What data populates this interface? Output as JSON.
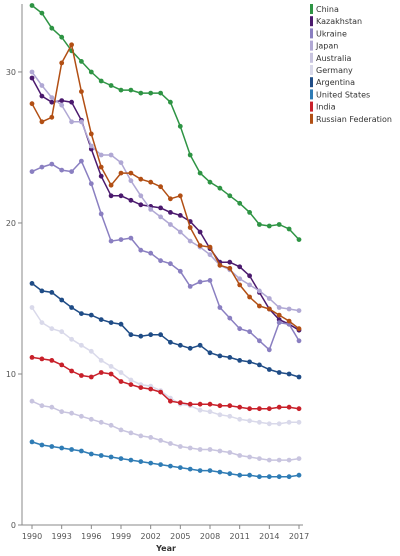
{
  "chart_data": {
    "type": "line",
    "xlabel": "Year",
    "ylabel": "",
    "x": [
      1990,
      1991,
      1992,
      1993,
      1994,
      1995,
      1996,
      1997,
      1998,
      1999,
      2000,
      2001,
      2002,
      2003,
      2004,
      2005,
      2006,
      2007,
      2008,
      2009,
      2010,
      2011,
      2012,
      2013,
      2014,
      2015,
      2016,
      2017
    ],
    "xticks": [
      1990,
      1993,
      1996,
      1999,
      2002,
      2005,
      2008,
      2011,
      2014,
      2017
    ],
    "ylim": [
      0,
      34.5
    ],
    "yticks": [
      0,
      10,
      20,
      30
    ],
    "legend_position": "top-right",
    "grid": false,
    "series": [
      {
        "name": "China",
        "color": "#2e9444",
        "values": [
          34.4,
          33.9,
          32.9,
          32.3,
          31.4,
          30.7,
          30.0,
          29.4,
          29.1,
          28.8,
          28.8,
          28.6,
          28.6,
          28.6,
          28.0,
          26.4,
          24.5,
          23.3,
          22.7,
          22.3,
          21.8,
          21.3,
          20.7,
          19.9,
          19.8,
          19.9,
          19.6,
          18.9
        ]
      },
      {
        "name": "Kazakhstan",
        "color": "#4b1a6e",
        "values": [
          29.6,
          28.4,
          28.0,
          28.1,
          28.0,
          26.8,
          24.9,
          23.1,
          21.8,
          21.8,
          21.5,
          21.2,
          21.1,
          21.0,
          20.7,
          20.5,
          20.1,
          19.4,
          18.3,
          17.4,
          17.4,
          17.1,
          16.5,
          15.4,
          14.3,
          13.6,
          13.3,
          12.9
        ]
      },
      {
        "name": "Ukraine",
        "color": "#8a7fc1",
        "values": [
          23.4,
          23.7,
          23.9,
          23.5,
          23.4,
          24.1,
          22.6,
          20.6,
          18.8,
          18.9,
          19.0,
          18.2,
          18.0,
          17.5,
          17.3,
          16.8,
          15.8,
          16.1,
          16.2,
          14.4,
          13.7,
          13.0,
          12.8,
          12.2,
          11.6,
          13.4,
          13.3,
          12.2
        ]
      },
      {
        "name": "Japan",
        "color": "#b0a8d4",
        "values": [
          30.0,
          29.1,
          28.3,
          27.8,
          26.7,
          26.7,
          25.1,
          24.5,
          24.5,
          24.0,
          22.8,
          21.8,
          20.9,
          20.4,
          19.9,
          19.4,
          18.8,
          18.4,
          17.9,
          17.2,
          16.9,
          16.3,
          15.9,
          15.5,
          15.0,
          14.4,
          14.3,
          14.2
        ]
      },
      {
        "name": "Australia",
        "color": "#c8c4df",
        "values": [
          8.2,
          7.9,
          7.8,
          7.5,
          7.4,
          7.2,
          7.0,
          6.8,
          6.6,
          6.3,
          6.1,
          5.9,
          5.8,
          5.6,
          5.4,
          5.2,
          5.1,
          5.0,
          5.0,
          4.9,
          4.8,
          4.6,
          4.5,
          4.4,
          4.3,
          4.3,
          4.3,
          4.4
        ]
      },
      {
        "name": "Germany",
        "color": "#d9d9ea",
        "values": [
          14.4,
          13.4,
          13.0,
          12.8,
          12.3,
          11.9,
          11.5,
          10.9,
          10.5,
          10.1,
          9.6,
          9.3,
          9.2,
          8.9,
          8.4,
          8.0,
          7.9,
          7.6,
          7.5,
          7.3,
          7.2,
          7.0,
          6.9,
          6.8,
          6.7,
          6.7,
          6.8,
          6.8
        ]
      },
      {
        "name": "Argentina",
        "color": "#1f4c86",
        "values": [
          16.0,
          15.5,
          15.4,
          14.9,
          14.4,
          14.0,
          13.9,
          13.6,
          13.4,
          13.3,
          12.6,
          12.5,
          12.6,
          12.6,
          12.1,
          11.9,
          11.7,
          11.9,
          11.4,
          11.2,
          11.1,
          10.9,
          10.8,
          10.6,
          10.3,
          10.1,
          10.0,
          9.8
        ]
      },
      {
        "name": "United States",
        "color": "#2f7cb5",
        "values": [
          5.5,
          5.3,
          5.2,
          5.1,
          5.0,
          4.9,
          4.7,
          4.6,
          4.5,
          4.4,
          4.3,
          4.2,
          4.1,
          4.0,
          3.9,
          3.8,
          3.7,
          3.6,
          3.6,
          3.5,
          3.4,
          3.3,
          3.3,
          3.2,
          3.2,
          3.2,
          3.2,
          3.3
        ]
      },
      {
        "name": "India",
        "color": "#c8202a",
        "values": [
          11.1,
          11.0,
          10.9,
          10.6,
          10.2,
          9.9,
          9.8,
          10.1,
          10.0,
          9.5,
          9.3,
          9.1,
          9.0,
          8.8,
          8.2,
          8.1,
          8.0,
          8.0,
          8.0,
          7.9,
          7.9,
          7.8,
          7.7,
          7.7,
          7.7,
          7.8,
          7.8,
          7.7
        ]
      },
      {
        "name": "Russian Federation",
        "color": "#b24f14",
        "values": [
          27.9,
          26.7,
          27.0,
          30.6,
          31.8,
          28.7,
          25.9,
          23.7,
          22.5,
          23.3,
          23.3,
          22.9,
          22.7,
          22.4,
          21.6,
          21.8,
          19.7,
          18.5,
          18.4,
          17.2,
          17.0,
          15.9,
          15.1,
          14.5,
          14.3,
          13.9,
          13.5,
          13.0
        ]
      }
    ]
  }
}
